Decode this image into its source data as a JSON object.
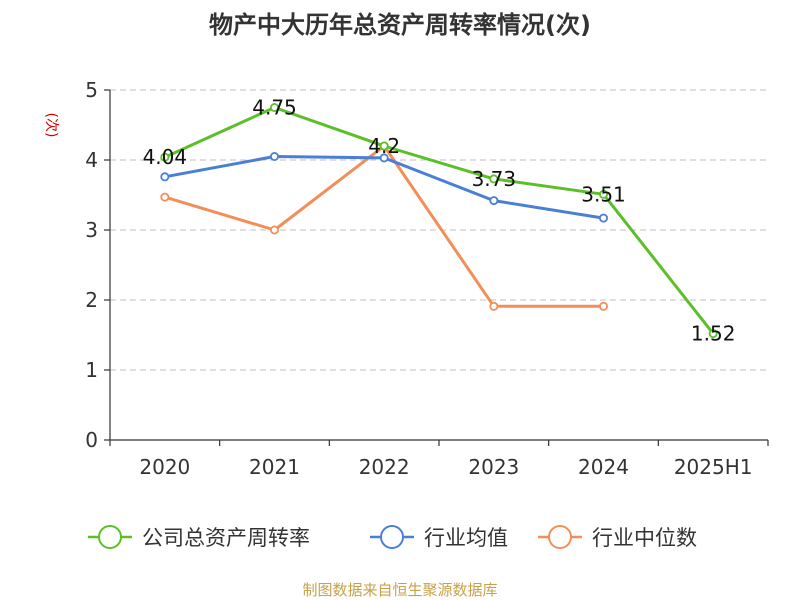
{
  "chart_data": {
    "type": "line",
    "title": "物产中大历年总资产周转率情况(次)",
    "ylabel": "(次)",
    "xlabel": "",
    "categories": [
      "2020",
      "2021",
      "2022",
      "2023",
      "2024",
      "2025H1"
    ],
    "y_ticks": [
      "0",
      "1",
      "2",
      "3",
      "4",
      "5"
    ],
    "ylim": [
      0,
      5
    ],
    "grid": true,
    "legend_placement": "bottom",
    "series": [
      {
        "name": "公司总资产周转率",
        "color": "#5cbf2a",
        "values": [
          4.04,
          4.75,
          4.2,
          3.73,
          3.51,
          1.52
        ],
        "data_labels": [
          "4.04",
          "4.75",
          "4.2",
          "3.73",
          "3.51",
          "1.52"
        ]
      },
      {
        "name": "行业均值",
        "color": "#4a7fd6",
        "values": [
          3.76,
          4.05,
          4.03,
          3.42,
          3.17,
          null
        ]
      },
      {
        "name": "行业中位数",
        "color": "#f28e57",
        "values": [
          3.47,
          3.0,
          4.2,
          1.91,
          1.91,
          null
        ]
      }
    ]
  },
  "colors": {
    "title": "#333333",
    "ylabel": "#d40000",
    "source": "#c7a24a",
    "grid": "#bfbfbf"
  },
  "source_text": "制图数据来自恒生聚源数据库"
}
